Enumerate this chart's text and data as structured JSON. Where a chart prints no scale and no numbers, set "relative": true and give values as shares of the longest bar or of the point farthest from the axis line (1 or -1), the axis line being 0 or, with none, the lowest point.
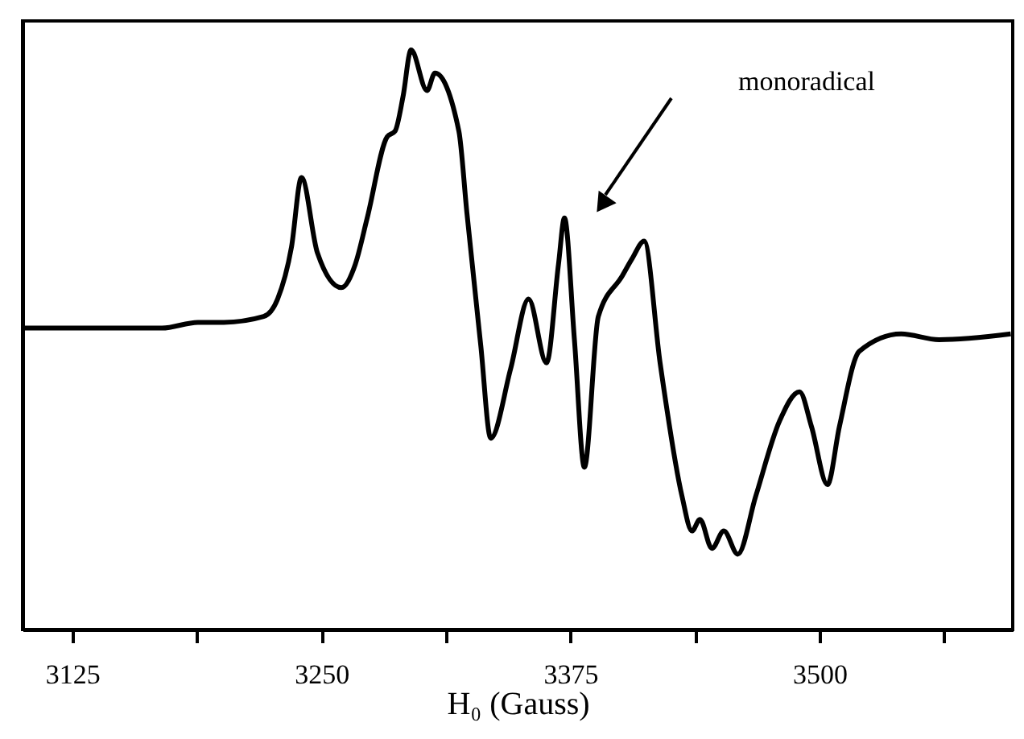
{
  "chart_data": {
    "type": "line",
    "relative": true,
    "xlabel": "H₀ (Gauss)",
    "xlim": [
      3100,
      3597
    ],
    "xticks": [
      3125,
      {
        "value": 3187.5,
        "label": null
      },
      3250,
      {
        "value": 3312.5,
        "label": null
      },
      3375,
      {
        "value": 3437.5,
        "label": null
      },
      3500,
      {
        "value": 3562.5,
        "label": null
      }
    ],
    "tick_labels": "x",
    "grid": false,
    "legend": false,
    "marker": "none",
    "line_style": "solid",
    "annotations": [
      "monoradical"
    ],
    "series": [
      {
        "color": "#000000",
        "x": [
          3100,
          3138,
          3170,
          3188,
          3201,
          3221,
          3228,
          3235,
          3240,
          3248,
          3260,
          3267,
          3273,
          3283,
          3287,
          3291,
          3295,
          3303,
          3307,
          3319,
          3323,
          3330,
          3335,
          3345,
          3354,
          3363,
          3369,
          3372,
          3377,
          3382,
          3389,
          3401,
          3406,
          3412,
          3420,
          3431,
          3436,
          3440,
          3446,
          3452,
          3459,
          3468,
          3480,
          3490,
          3496,
          3504,
          3510,
          3520,
          3541,
          3560,
          3596
        ],
        "values": [
          0.52,
          0.52,
          0.52,
          0.53,
          0.53,
          0.54,
          0.57,
          0.66,
          0.78,
          0.65,
          0.59,
          0.63,
          0.71,
          0.85,
          0.86,
          0.92,
          1.0,
          0.93,
          0.96,
          0.86,
          0.72,
          0.49,
          0.33,
          0.45,
          0.57,
          0.46,
          0.63,
          0.71,
          0.5,
          0.28,
          0.54,
          0.61,
          0.64,
          0.67,
          0.46,
          0.23,
          0.17,
          0.19,
          0.14,
          0.17,
          0.13,
          0.23,
          0.36,
          0.41,
          0.35,
          0.25,
          0.35,
          0.48,
          0.51,
          0.5,
          0.51
        ]
      }
    ]
  }
}
